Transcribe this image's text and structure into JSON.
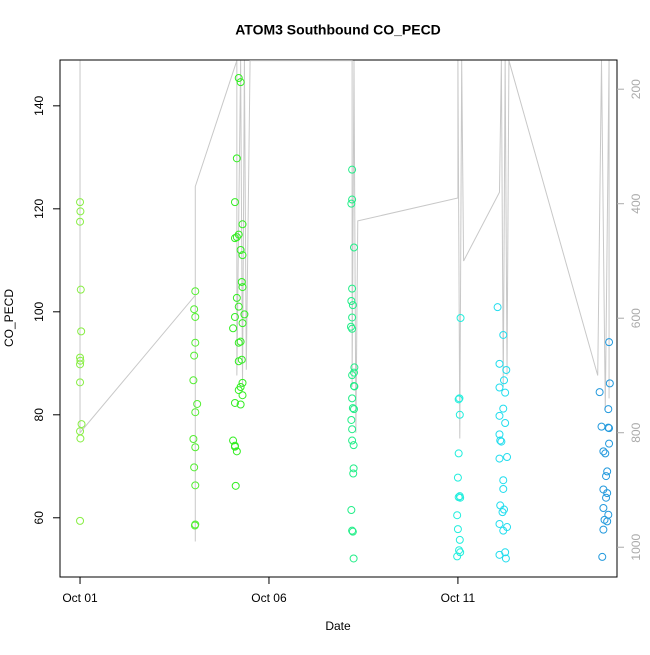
{
  "chart_data": {
    "type": "scatter",
    "title": "ATOM3 Southbound CO_PECD",
    "x_label": "Date",
    "y_label": "CO_PECD",
    "xlim": [
      -0.53,
      14.21
    ],
    "ylim": [
      48.5,
      148.9
    ],
    "y2lim": [
      1052,
      149
    ],
    "xticks": [
      {
        "value": 0,
        "label": "Oct 01"
      },
      {
        "value": 5,
        "label": "Oct 06"
      },
      {
        "value": 10,
        "label": "Oct 11"
      }
    ],
    "yticks": [
      60,
      80,
      100,
      120,
      140
    ],
    "y2ticks": [
      200,
      400,
      600,
      800,
      1000
    ],
    "groups": [
      {
        "color": "#88ee44",
        "x": [
          0.0,
          0.01,
          0.0,
          0.02,
          0.03,
          0.0,
          0.01,
          0.0,
          0.0,
          0.04,
          0.0,
          0.01,
          0.0
        ],
        "values": [
          121.3,
          119.5,
          117.5,
          104.3,
          96.2,
          91.1,
          90.5,
          89.8,
          86.3,
          78.2,
          76.8,
          75.4,
          59.4
        ]
      },
      {
        "color": "#55ee33",
        "x": [
          3.05,
          3.02,
          3.05,
          3.05,
          3.02,
          3.0,
          3.1,
          3.05,
          3.0,
          3.05,
          3.02,
          3.05,
          3.05,
          3.04
        ],
        "values": [
          104,
          100.5,
          99,
          94,
          91.5,
          86.7,
          82.1,
          80.5,
          75.3,
          73.7,
          69.8,
          66.3,
          58.7,
          58.5
        ]
      },
      {
        "color": "#33ee22",
        "x": [
          4.2,
          4.25,
          4.15,
          4.1,
          4.3,
          4.2,
          4.15,
          4.1,
          4.25,
          4.3,
          4.28,
          4.3,
          4.15,
          4.2,
          4.35,
          4.1,
          4.3,
          4.05,
          4.25,
          4.2,
          4.28,
          4.2,
          4.3,
          4.25,
          4.2,
          4.3,
          4.1,
          4.25,
          4.05,
          4.1,
          4.1,
          4.15,
          4.12
        ],
        "values": [
          145.4,
          144.6,
          129.8,
          121.3,
          117,
          115,
          114.5,
          114.3,
          112,
          111,
          105.8,
          104.8,
          102.7,
          101,
          99.5,
          99,
          97.8,
          96.8,
          94.2,
          94,
          90.7,
          90.4,
          86.2,
          85.4,
          84.8,
          83.8,
          82.3,
          82,
          75,
          74,
          73.8,
          72.9,
          66.2
        ]
      },
      {
        "color": "#22ee88",
        "x": [
          7.2,
          7.2,
          7.18,
          7.25,
          7.2,
          7.18,
          7.22,
          7.2,
          7.17,
          7.2,
          7.26,
          7.25,
          7.2,
          7.25,
          7.26,
          7.2,
          7.22,
          7.25,
          7.18,
          7.2,
          7.2,
          7.24,
          7.24,
          7.23,
          7.18,
          7.2,
          7.22,
          7.24
        ],
        "values": [
          127.6,
          121.8,
          121,
          112.5,
          104.5,
          102.1,
          101.3,
          98.9,
          97.1,
          96.7,
          89.2,
          88.2,
          87.7,
          85.6,
          85.5,
          83.2,
          81.3,
          81.1,
          79,
          77.2,
          75,
          74.1,
          69.6,
          68.6,
          61.5,
          57.5,
          57.3,
          52.1
        ]
      },
      {
        "color": "#22eedd",
        "x": [
          10.07,
          10.04,
          10.02,
          10.05,
          10.02,
          10.0,
          10.05,
          10.02,
          10.06,
          9.98,
          10.0,
          10.05,
          10.03,
          10.06,
          9.98
        ],
        "values": [
          98.8,
          83.2,
          83,
          80,
          72.5,
          67.8,
          64.2,
          64,
          63.9,
          60.5,
          57.8,
          55.7,
          53.7,
          53.3,
          52.5
        ]
      },
      {
        "color": "#22ddee",
        "x": [
          11.05,
          11.2,
          11.1,
          11.28,
          11.22,
          11.1,
          11.25,
          11.2,
          11.1,
          11.25,
          11.1,
          11.12,
          11.15,
          11.3,
          11.1,
          11.2,
          11.2,
          11.12,
          11.22,
          11.18,
          11.1,
          11.3,
          11.2,
          11.25,
          11.1,
          11.27
        ],
        "values": [
          100.9,
          95.5,
          89.9,
          88.7,
          86.7,
          85.3,
          84.3,
          81.2,
          79.8,
          78.4,
          76.2,
          75,
          74.8,
          71.8,
          71.5,
          67.3,
          65.6,
          62.4,
          61.6,
          61.1,
          58.8,
          58.2,
          57.5,
          53.3,
          52.8,
          52.1
        ]
      },
      {
        "color": "#2299dd",
        "x": [
          14.0,
          14.02,
          13.75,
          13.98,
          13.8,
          13.98,
          14.0,
          14.0,
          13.85,
          13.9,
          13.95,
          13.92,
          13.85,
          13.95,
          13.92,
          13.85,
          13.98,
          13.88,
          13.95,
          13.85,
          13.82
        ],
        "values": [
          94.1,
          86.1,
          84.4,
          81.1,
          77.7,
          77.5,
          77.4,
          74.4,
          72.9,
          72.5,
          69,
          68.1,
          65.5,
          64.8,
          63.9,
          61.9,
          60.6,
          59.6,
          59.3,
          57.7,
          52.4
        ]
      }
    ],
    "line": {
      "color": "#c8c8c8",
      "axis": "y2",
      "x": [
        0,
        0,
        0,
        0,
        3.05,
        3.05,
        3.05,
        4.15,
        4.15,
        4.25,
        4.3,
        4.35,
        4.4,
        4.5,
        7.2,
        7.2,
        7.25,
        7.3,
        7.35,
        10.0,
        10.0,
        10.05,
        10.1,
        10.15,
        11.1,
        11.15,
        11.2,
        11.25,
        11.3,
        11.35,
        13.7,
        13.8,
        13.9,
        14.0,
        14.0
      ],
      "values": [
        150,
        780,
        160,
        800,
        560,
        990,
        370,
        150,
        700,
        150,
        720,
        150,
        690,
        150,
        150,
        720,
        150,
        800,
        430,
        390,
        150,
        810,
        150,
        500,
        380,
        150,
        720,
        150,
        700,
        150,
        700,
        150,
        760,
        150,
        740
      ]
    }
  }
}
